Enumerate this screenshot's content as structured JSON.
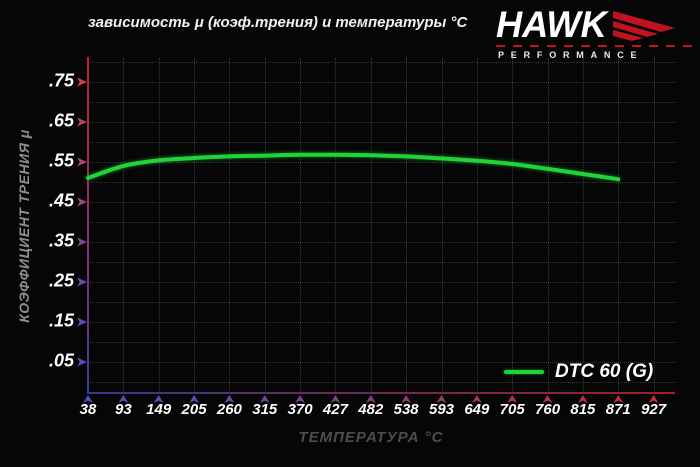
{
  "title": "зависимость μ (коэф.трения) и температуры °C",
  "logo": {
    "brand": "HAWK",
    "tagline": "PERFORMANCE",
    "accent_color": "#c1121f"
  },
  "chart_data": {
    "type": "line",
    "title": "зависимость μ (коэф.трения) и температуры °C",
    "xlabel": "ТЕМПЕРАТУРА °C",
    "ylabel": "КОЭФФИЦИЕНТ ТРЕНИЯ μ",
    "x_tick_labels": [
      "38",
      "93",
      "149",
      "205",
      "260",
      "315",
      "370",
      "427",
      "482",
      "538",
      "593",
      "649",
      "705",
      "760",
      "815",
      "871",
      "927"
    ],
    "y_tick_labels": [
      ".75",
      ".65",
      ".55",
      ".45",
      ".35",
      ".25",
      ".15",
      ".05"
    ],
    "ylim": [
      0,
      0.8
    ],
    "grid": true,
    "grid_style": "dotted",
    "legend_position": "bottom-right",
    "series": [
      {
        "name": "DTC 60 (G)",
        "color": "#1fd43a",
        "x": [
          38,
          93,
          149,
          205,
          260,
          315,
          370,
          427,
          482,
          538,
          593,
          649,
          705,
          760,
          815,
          871
        ],
        "y": [
          0.51,
          0.54,
          0.554,
          0.56,
          0.564,
          0.566,
          0.568,
          0.568,
          0.567,
          0.564,
          0.559,
          0.553,
          0.545,
          0.533,
          0.52,
          0.507
        ]
      }
    ],
    "axis_gradients": {
      "y_axis": [
        "#c41e2e",
        "#8a2f78",
        "#3a3f9e"
      ],
      "x_axis": [
        "#343a8e",
        "#6c2a58",
        "#99242b"
      ]
    },
    "tick_arrow_gradients": {
      "y": [
        "#d2404f",
        "#4a50c8"
      ],
      "x": [
        "#4a50c8",
        "#cc2a33"
      ]
    }
  }
}
